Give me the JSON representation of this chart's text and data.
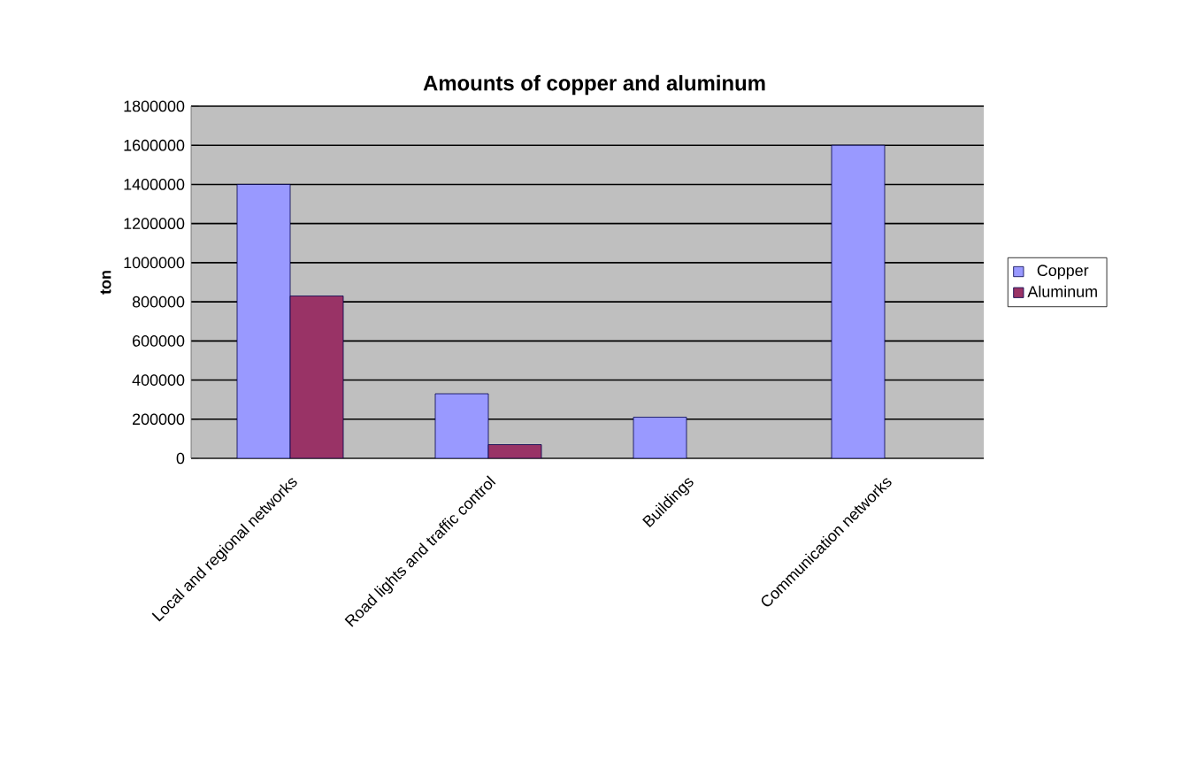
{
  "chart_data": {
    "type": "bar",
    "title": "Amounts of copper and aluminum",
    "ylabel": "ton",
    "categories": [
      "Local and regional networks",
      "Road lights and traffic control",
      "Buildings",
      "Communication networks"
    ],
    "series": [
      {
        "name": "Copper",
        "color": "#9999ff",
        "values": [
          1400000,
          330000,
          210000,
          1600000
        ]
      },
      {
        "name": "Aluminum",
        "color": "#993366",
        "values": [
          830000,
          70000,
          null,
          null
        ]
      }
    ],
    "ylim": [
      0,
      1800000
    ],
    "yticks": [
      0,
      200000,
      400000,
      600000,
      800000,
      1000000,
      1200000,
      1400000,
      1600000,
      1800000
    ],
    "grid": "y",
    "legend": "right"
  }
}
